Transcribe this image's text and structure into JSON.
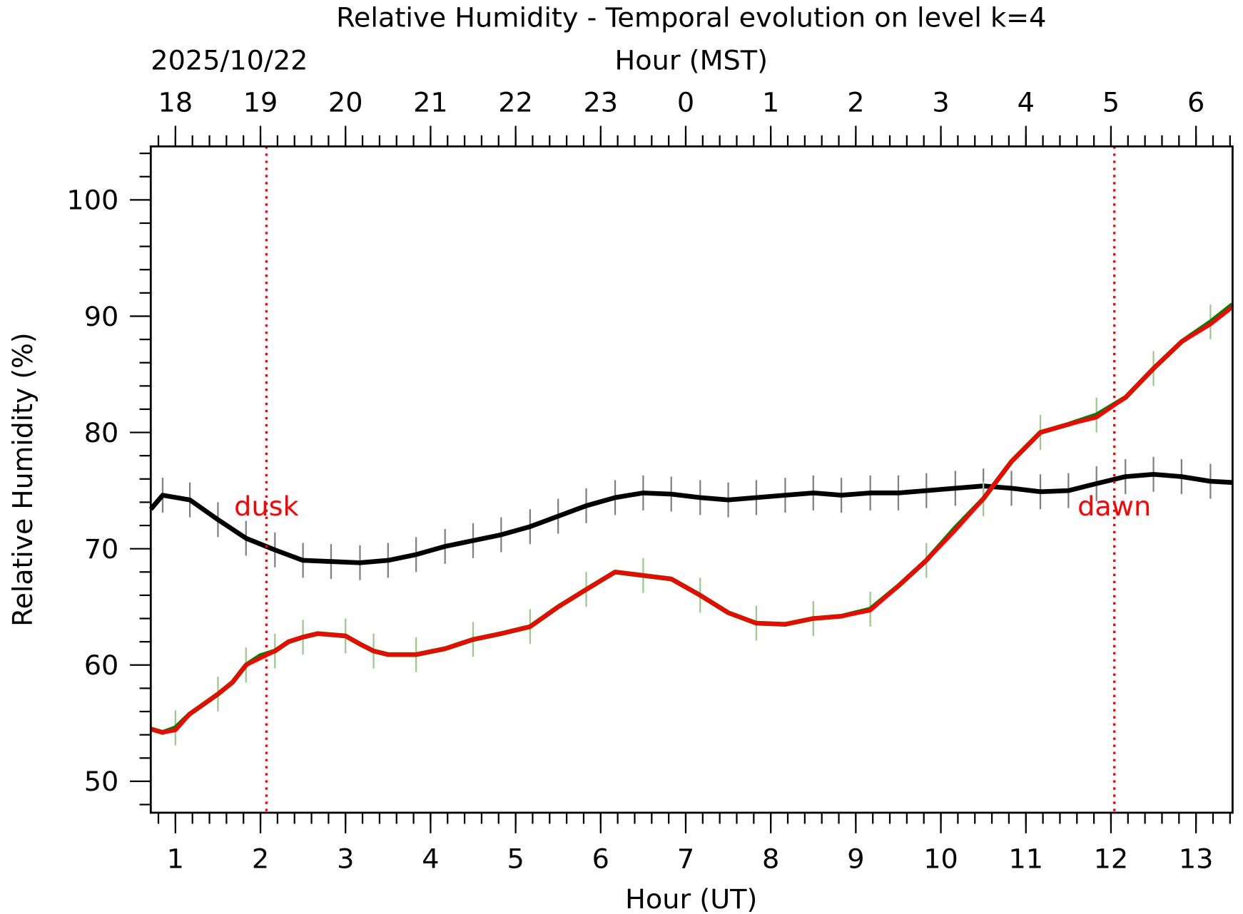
{
  "chart_data": {
    "type": "line",
    "title": "Relative Humidity - Temporal evolution on level k=4",
    "xlabel": "Hour (UT)",
    "ylabel": "Relative Humidity (%)",
    "top_xlabel": "Hour (MST)",
    "date_label": "2025/10/22",
    "xlim": [
      0.71,
      13.43
    ],
    "ylim": [
      47.3,
      104.6
    ],
    "grid": false,
    "x_ticks": [
      1,
      2,
      3,
      4,
      5,
      6,
      7,
      8,
      9,
      10,
      11,
      12,
      13
    ],
    "x_tick_labels": [
      "1",
      "2",
      "3",
      "4",
      "5",
      "6",
      "7",
      "8",
      "9",
      "10",
      "11",
      "12",
      "13"
    ],
    "y_ticks": [
      50,
      60,
      70,
      80,
      90,
      100
    ],
    "y_tick_labels": [
      "50",
      "60",
      "70",
      "80",
      "90",
      "100"
    ],
    "top_ticks_ut": [
      1,
      2,
      3,
      4,
      5,
      6,
      7,
      8,
      9,
      10,
      11,
      12,
      13
    ],
    "top_tick_labels": [
      "18",
      "19",
      "20",
      "21",
      "22",
      "23",
      "0",
      "1",
      "2",
      "3",
      "4",
      "5",
      "6"
    ],
    "annotations": [
      {
        "text": "dusk",
        "x": 2.07,
        "color": "#ff0000"
      },
      {
        "text": "dawn",
        "x": 12.04,
        "color": "#ff0000"
      }
    ],
    "series": [
      {
        "color": "#000000",
        "errorbar_color": "#808080",
        "x": [
          0.71,
          0.85,
          1.17,
          1.5,
          1.83,
          2.17,
          2.5,
          2.83,
          3.17,
          3.5,
          3.83,
          4.17,
          4.5,
          4.83,
          5.17,
          5.5,
          5.83,
          6.17,
          6.5,
          6.83,
          7.17,
          7.5,
          7.83,
          8.17,
          8.5,
          8.83,
          9.17,
          9.5,
          9.83,
          10.17,
          10.5,
          10.83,
          11.17,
          11.5,
          11.83,
          12.17,
          12.5,
          12.83,
          13.17,
          13.43
        ],
        "y": [
          73.4,
          74.6,
          74.2,
          72.5,
          70.9,
          69.9,
          69.0,
          68.9,
          68.8,
          69.0,
          69.5,
          70.2,
          70.7,
          71.2,
          71.9,
          72.8,
          73.7,
          74.4,
          74.8,
          74.7,
          74.4,
          74.2,
          74.4,
          74.6,
          74.8,
          74.6,
          74.8,
          74.8,
          75.0,
          75.2,
          75.4,
          75.2,
          74.9,
          75.0,
          75.6,
          76.2,
          76.4,
          76.2,
          75.8,
          75.7
        ]
      },
      {
        "color": "#008000",
        "errorbar_color": "#9bc98b",
        "x": [
          0.71,
          0.85,
          1.0,
          1.17,
          1.5,
          1.67,
          1.83,
          2.0,
          2.17,
          2.33,
          2.5,
          2.67,
          3.0,
          3.17,
          3.33,
          3.5,
          3.83,
          4.17,
          4.5,
          4.83,
          5.17,
          5.5,
          5.83,
          6.17,
          6.5,
          6.83,
          7.17,
          7.5,
          7.83,
          8.17,
          8.5,
          8.83,
          9.17,
          9.5,
          9.83,
          10.17,
          10.5,
          10.83,
          11.17,
          11.5,
          11.83,
          12.17,
          12.5,
          12.83,
          13.17,
          13.43
        ],
        "y": [
          54.5,
          54.2,
          54.6,
          55.8,
          57.5,
          58.5,
          60.0,
          60.8,
          61.2,
          62.0,
          62.4,
          62.7,
          62.5,
          61.8,
          61.2,
          60.9,
          60.9,
          61.4,
          62.2,
          62.7,
          63.3,
          65.0,
          66.5,
          68.0,
          67.7,
          67.4,
          66.0,
          64.5,
          63.6,
          63.5,
          64.0,
          64.2,
          64.8,
          66.8,
          69.0,
          71.8,
          74.3,
          77.5,
          80.0,
          80.7,
          81.5,
          83.0,
          85.5,
          87.8,
          89.5,
          91.0
        ]
      },
      {
        "color": "#ff0000",
        "x": [
          0.71,
          0.85,
          1.0,
          1.17,
          1.5,
          1.67,
          1.83,
          2.0,
          2.17,
          2.33,
          2.5,
          2.67,
          3.0,
          3.17,
          3.33,
          3.5,
          3.83,
          4.17,
          4.5,
          4.83,
          5.17,
          5.5,
          5.83,
          6.17,
          6.5,
          6.83,
          7.17,
          7.5,
          7.83,
          8.17,
          8.5,
          8.83,
          9.17,
          9.5,
          9.83,
          10.17,
          10.5,
          10.83,
          11.17,
          11.5,
          11.83,
          12.17,
          12.5,
          12.83,
          13.17,
          13.43
        ],
        "y": [
          54.5,
          54.2,
          54.4,
          55.8,
          57.5,
          58.5,
          60.0,
          60.6,
          61.2,
          62.0,
          62.4,
          62.7,
          62.5,
          61.8,
          61.2,
          60.9,
          60.9,
          61.4,
          62.2,
          62.7,
          63.3,
          65.0,
          66.5,
          68.0,
          67.7,
          67.4,
          66.0,
          64.5,
          63.6,
          63.5,
          64.0,
          64.2,
          64.7,
          66.8,
          69.0,
          71.6,
          74.3,
          77.5,
          80.0,
          80.7,
          81.3,
          83.0,
          85.5,
          87.8,
          89.3,
          90.8
        ]
      }
    ]
  }
}
